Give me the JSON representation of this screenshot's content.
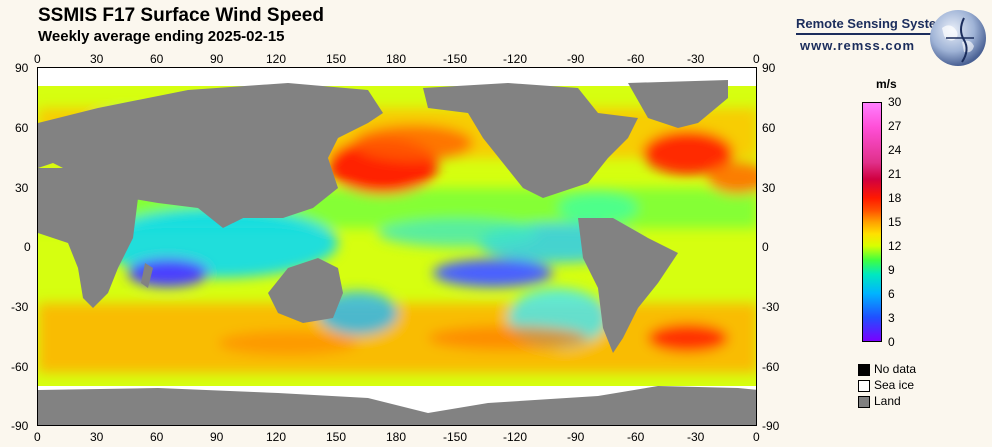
{
  "title": "SSMIS F17 Surface Wind Speed",
  "subtitle": "Weekly average ending 2025-02-15",
  "logo": {
    "name": "Remote Sensing Systems",
    "url": "www.remss.com"
  },
  "axes": {
    "lon_labels": [
      "0",
      "30",
      "60",
      "90",
      "120",
      "150",
      "180",
      "-150",
      "-120",
      "-90",
      "-60",
      "-30",
      "0"
    ],
    "lat_labels": [
      "90",
      "60",
      "30",
      "0",
      "-30",
      "-60",
      "-90"
    ]
  },
  "colorbar": {
    "unit": "m/s",
    "ticks": [
      "30",
      "27",
      "24",
      "21",
      "18",
      "15",
      "12",
      "9",
      "6",
      "3",
      "0"
    ]
  },
  "legend": [
    {
      "label": "No data",
      "color": "#000000"
    },
    {
      "label": "Sea ice",
      "color": "#ffffff"
    },
    {
      "label": "Land",
      "color": "#808080"
    }
  ]
}
